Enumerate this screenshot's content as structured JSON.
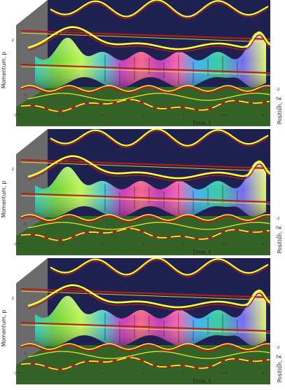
{
  "chart_data": [
    {
      "type": "surface3d",
      "xlabel": "Time, t",
      "ylabel": "Momentum, p",
      "zlabel": "Position, x",
      "x_ticks": [
        "-3 T",
        "-2 T",
        "-T",
        "0",
        "T",
        "2 T",
        "3 T"
      ],
      "y_ticks": [
        "-1",
        "2"
      ],
      "z_ticks": [
        "-2",
        "0",
        "2"
      ],
      "colors": {
        "back_wall": "#1f2150",
        "floor": "#2a5a1a",
        "side_wall": "#6b6b6b",
        "curve_primary": "#ffff33",
        "curve_secondary": "#b0201b"
      }
    },
    {
      "type": "surface3d",
      "xlabel": "Time, t",
      "ylabel": "Momentum, p",
      "zlabel": "Position, x",
      "x_ticks": [
        "-3 T",
        "-2 T",
        "-T",
        "0",
        "T",
        "2 T",
        "3 T"
      ],
      "y_ticks": [
        "-1",
        "2"
      ],
      "z_ticks": [
        "-2",
        "0",
        "2"
      ],
      "colors": {
        "back_wall": "#1f2150",
        "floor": "#2a5a1a",
        "side_wall": "#6b6b6b",
        "curve_primary": "#ffff33",
        "curve_secondary": "#b0201b"
      }
    },
    {
      "type": "surface3d",
      "xlabel": "Time, t",
      "ylabel": "Momentum, p",
      "zlabel": "Position, x",
      "x_ticks": [
        "-3 T",
        "-2 T",
        "-T",
        "0",
        "T",
        "2 T",
        "3 T"
      ],
      "y_ticks": [
        "-1",
        "2"
      ],
      "z_ticks": [
        "-2",
        "0",
        "2"
      ],
      "colors": {
        "back_wall": "#1f2150",
        "floor": "#2a5a1a",
        "side_wall": "#6b6b6b",
        "curve_primary": "#ffff33",
        "curve_secondary": "#b0201b"
      }
    }
  ]
}
